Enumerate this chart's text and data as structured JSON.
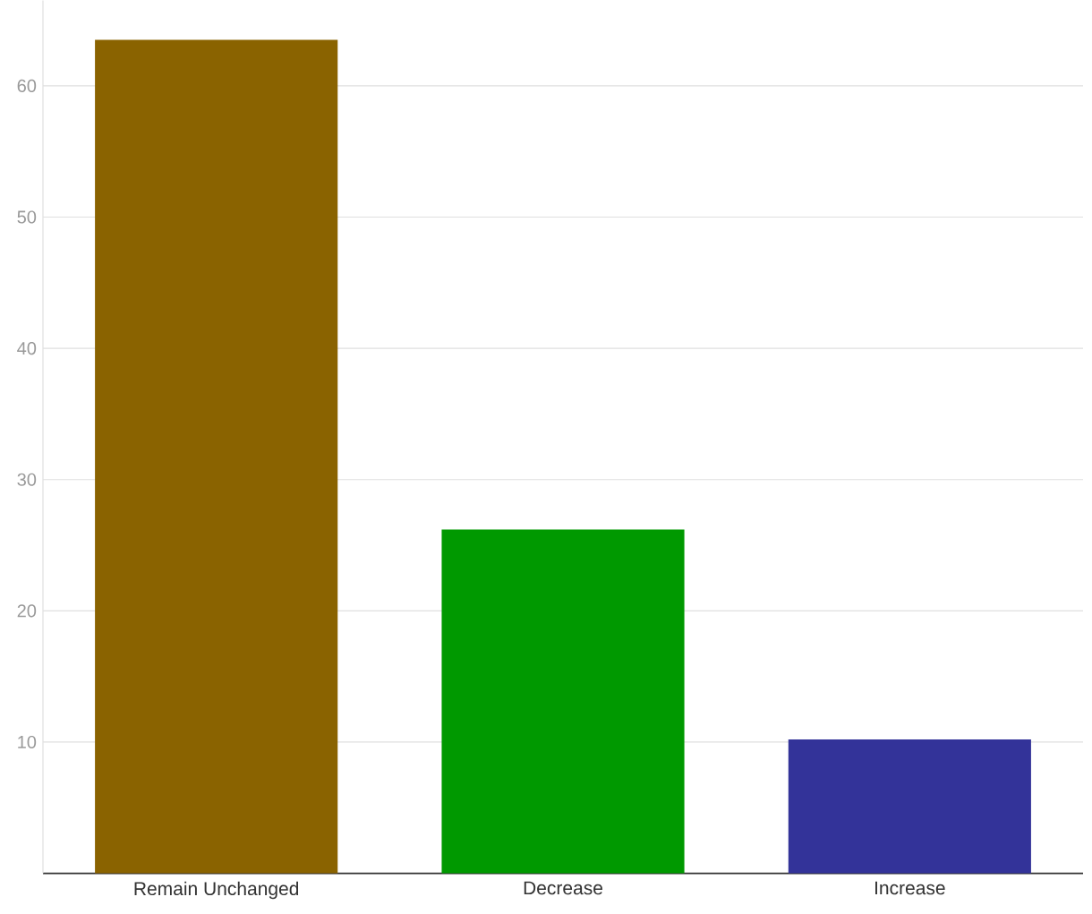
{
  "chart_data": {
    "type": "bar",
    "categories": [
      "Remain Unchanged",
      "Decrease",
      "Increase"
    ],
    "values": [
      63.5,
      26.2,
      10.2
    ],
    "colors": [
      "#8a6300",
      "#009900",
      "#333399"
    ],
    "ylim": [
      0,
      66.5
    ],
    "yticks": [
      10,
      20,
      30,
      40,
      50,
      60
    ],
    "grid": "y"
  }
}
